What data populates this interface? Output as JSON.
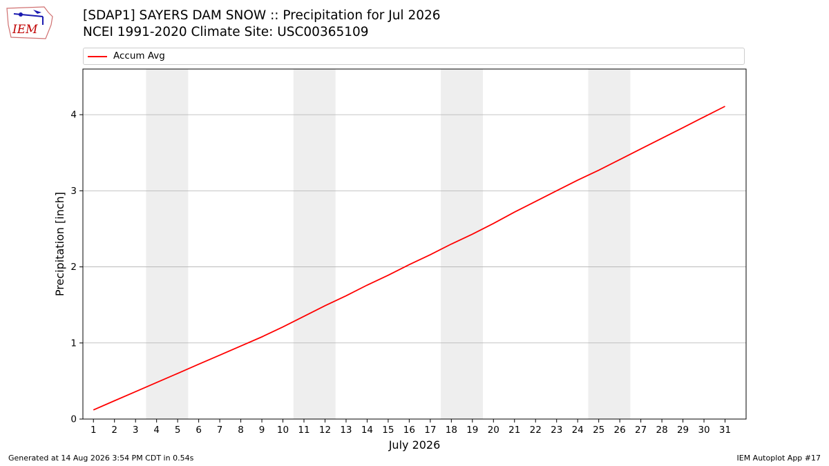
{
  "logo": {
    "text": "IEM"
  },
  "title_line1": "[SDAP1] SAYERS DAM SNOW :: Precipitation for Jul 2026",
  "title_line2": "NCEI 1991-2020 Climate Site: USC00365109",
  "footer_left": "Generated at 14 Aug 2026 3:54 PM CDT in 0.54s",
  "footer_right": "IEM Autoplot App #17",
  "colors": {
    "series": "#ff0000",
    "weekend": "#eeeeee",
    "grid": "#b0b0b0"
  },
  "chart_data": {
    "type": "line",
    "xlabel": "July 2026",
    "ylabel": "Precipitation [inch]",
    "xlim": [
      0.5,
      32
    ],
    "ylim": [
      0,
      4.6
    ],
    "yticks": [
      0,
      1,
      2,
      3,
      4
    ],
    "x": [
      1,
      2,
      3,
      4,
      5,
      6,
      7,
      8,
      9,
      10,
      11,
      12,
      13,
      14,
      15,
      16,
      17,
      18,
      19,
      20,
      21,
      22,
      23,
      24,
      25,
      26,
      27,
      28,
      29,
      30,
      31
    ],
    "shaded_days": [
      [
        4,
        5
      ],
      [
        11,
        12
      ],
      [
        18,
        19
      ],
      [
        25,
        26
      ]
    ],
    "grid": "horizontal",
    "legend_position": "top",
    "series": [
      {
        "name": "Accum Avg",
        "values": [
          0.12,
          0.24,
          0.36,
          0.48,
          0.6,
          0.72,
          0.84,
          0.96,
          1.08,
          1.21,
          1.35,
          1.49,
          1.62,
          1.76,
          1.89,
          2.03,
          2.16,
          2.3,
          2.43,
          2.57,
          2.72,
          2.86,
          3.0,
          3.14,
          3.27,
          3.41,
          3.55,
          3.69,
          3.83,
          3.97,
          4.11
        ]
      }
    ]
  }
}
